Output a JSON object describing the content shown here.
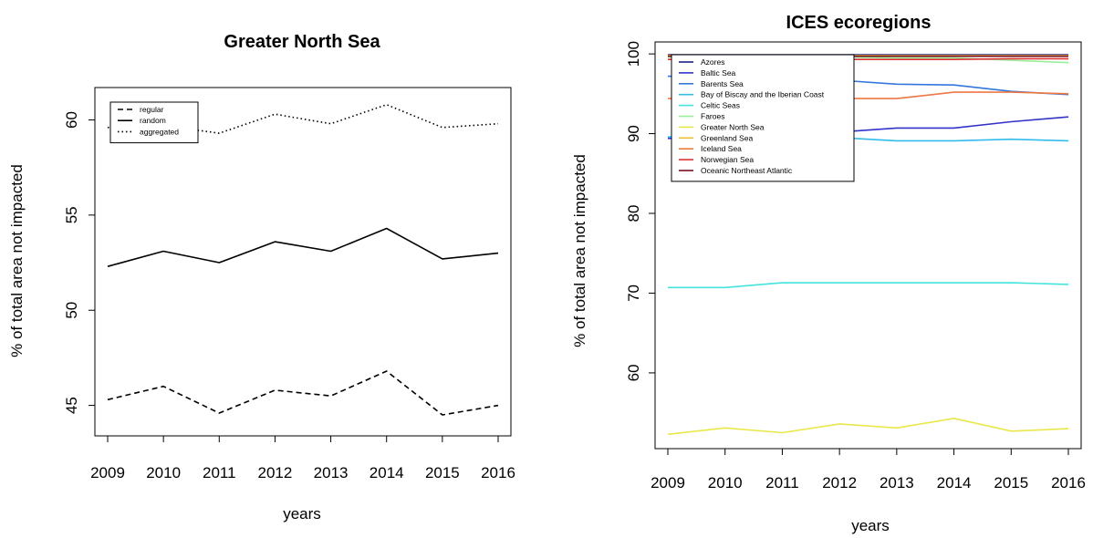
{
  "chart_data": [
    {
      "type": "line",
      "title": "Greater North Sea",
      "xlabel": "years",
      "ylabel": "% of total area not impacted",
      "x": [
        2009,
        2010,
        2011,
        2012,
        2013,
        2014,
        2015,
        2016
      ],
      "xlim": [
        2009,
        2016
      ],
      "ylim": [
        43.4,
        61.7
      ],
      "yticks": [
        45,
        50,
        55,
        60
      ],
      "legend_position": "top-left",
      "grid": false,
      "series": [
        {
          "name": "regular",
          "linestyle": "dashed",
          "color": "#000000",
          "values": [
            45.3,
            46.0,
            44.6,
            45.8,
            45.5,
            46.8,
            44.5,
            45.0
          ]
        },
        {
          "name": "random",
          "linestyle": "solid",
          "color": "#000000",
          "values": [
            52.3,
            53.1,
            52.5,
            53.6,
            53.1,
            54.3,
            52.7,
            53.0
          ]
        },
        {
          "name": "aggregated",
          "linestyle": "dotted",
          "color": "#000000",
          "values": [
            59.6,
            59.7,
            59.3,
            60.3,
            59.8,
            60.8,
            59.6,
            59.8
          ]
        }
      ]
    },
    {
      "type": "line",
      "title": "ICES ecoregions",
      "xlabel": "years",
      "ylabel": "% of total area not impacted",
      "x": [
        2009,
        2010,
        2011,
        2012,
        2013,
        2014,
        2015,
        2016
      ],
      "xlim": [
        2009,
        2016
      ],
      "ylim": [
        50.5,
        101.5
      ],
      "yticks": [
        60,
        70,
        80,
        90,
        100
      ],
      "legend_position": "top-left",
      "grid": false,
      "series": [
        {
          "name": "Azores",
          "color": "#1f1f8a",
          "values": [
            99.9,
            99.9,
            99.9,
            99.9,
            99.9,
            99.9,
            99.9,
            99.9
          ]
        },
        {
          "name": "Baltic Sea",
          "color": "#3333cc",
          "values": [
            89.4,
            89.6,
            89.9,
            90.2,
            90.7,
            90.7,
            91.5,
            92.1
          ]
        },
        {
          "name": "Barents Sea",
          "color": "#3377dd",
          "values": [
            97.2,
            97.0,
            96.9,
            96.7,
            96.2,
            96.1,
            95.3,
            94.9
          ]
        },
        {
          "name": "Bay of Biscay and the Iberian Coast",
          "color": "#33bbee",
          "values": [
            89.6,
            89.6,
            89.5,
            89.5,
            89.1,
            89.1,
            89.3,
            89.1
          ]
        },
        {
          "name": "Celtic Seas",
          "color": "#44e4dd",
          "values": [
            70.7,
            70.7,
            71.3,
            71.3,
            71.3,
            71.3,
            71.3,
            71.1
          ]
        },
        {
          "name": "Faroes",
          "color": "#99ee99",
          "values": [
            99.6,
            99.6,
            99.6,
            99.6,
            99.5,
            99.5,
            99.2,
            98.9
          ]
        },
        {
          "name": "Greater North Sea",
          "color": "#e8e84a",
          "values": [
            52.3,
            53.1,
            52.5,
            53.6,
            53.1,
            54.3,
            52.7,
            53.0
          ]
        },
        {
          "name": "Greenland Sea",
          "color": "#eebb33",
          "values": [
            99.8,
            99.8,
            99.8,
            99.8,
            99.8,
            99.8,
            99.8,
            99.8
          ]
        },
        {
          "name": "Iceland Sea",
          "color": "#ee7744",
          "values": [
            94.4,
            94.4,
            94.4,
            94.4,
            94.4,
            95.2,
            95.2,
            95.0
          ]
        },
        {
          "name": "Norwegian Sea",
          "color": "#dd3333",
          "values": [
            99.3,
            99.3,
            99.3,
            99.3,
            99.3,
            99.3,
            99.4,
            99.4
          ]
        },
        {
          "name": "Oceanic Northeast Atlantic",
          "color": "#7a0e1e",
          "values": [
            99.7,
            99.7,
            99.7,
            99.7,
            99.7,
            99.7,
            99.7,
            99.7
          ]
        }
      ]
    }
  ]
}
